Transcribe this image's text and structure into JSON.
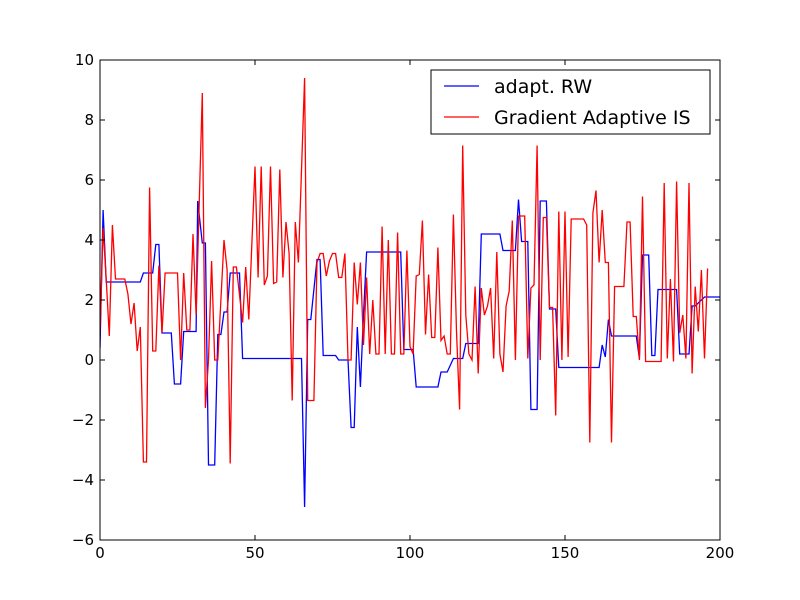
{
  "chart_data": {
    "type": "line",
    "title": "",
    "xlabel": "",
    "ylabel": "",
    "xlim": [
      0,
      200
    ],
    "ylim": [
      -6,
      10
    ],
    "xticks": [
      0,
      50,
      100,
      150,
      200
    ],
    "yticks": [
      -6,
      -4,
      -2,
      0,
      2,
      4,
      6,
      8,
      10
    ],
    "grid": false,
    "legend_position": "top-right",
    "series": [
      {
        "name": "adapt. RW",
        "color": "#0000ff",
        "points": [
          [
            0,
            0.4
          ],
          [
            1,
            5.0
          ],
          [
            2,
            2.6
          ],
          [
            3,
            2.6
          ],
          [
            13,
            2.6
          ],
          [
            14,
            2.9
          ],
          [
            17,
            2.9
          ],
          [
            18,
            3.85
          ],
          [
            19,
            3.85
          ],
          [
            20,
            0.9
          ],
          [
            23,
            0.9
          ],
          [
            24,
            -0.8
          ],
          [
            26,
            -0.8
          ],
          [
            27,
            0.95
          ],
          [
            31,
            0.95
          ],
          [
            31.5,
            5.3
          ],
          [
            33,
            3.9
          ],
          [
            34,
            3.9
          ],
          [
            35,
            -3.5
          ],
          [
            37,
            -3.5
          ],
          [
            38,
            0.85
          ],
          [
            39,
            0.85
          ],
          [
            40,
            1.6
          ],
          [
            41,
            1.6
          ],
          [
            42,
            2.9
          ],
          [
            45,
            2.9
          ],
          [
            46,
            0.05
          ],
          [
            65,
            0.05
          ],
          [
            66,
            -4.9
          ],
          [
            67,
            1.35
          ],
          [
            68,
            1.35
          ],
          [
            70,
            3.35
          ],
          [
            71,
            3.35
          ],
          [
            72,
            0.15
          ],
          [
            76,
            0.15
          ],
          [
            77,
            0.0
          ],
          [
            80,
            0.0
          ],
          [
            81,
            -2.25
          ],
          [
            82,
            -2.25
          ],
          [
            83,
            1.1
          ],
          [
            84,
            -0.9
          ],
          [
            85,
            1.5
          ],
          [
            86,
            3.6
          ],
          [
            97,
            3.6
          ],
          [
            98,
            0.35
          ],
          [
            101,
            0.35
          ],
          [
            102,
            -0.9
          ],
          [
            109,
            -0.9
          ],
          [
            110,
            -0.4
          ],
          [
            112,
            -0.4
          ],
          [
            114,
            0.05
          ],
          [
            117,
            0.05
          ],
          [
            118,
            0.55
          ],
          [
            122,
            0.55
          ],
          [
            123,
            4.2
          ],
          [
            129,
            4.2
          ],
          [
            130,
            3.65
          ],
          [
            134,
            3.65
          ],
          [
            135,
            5.35
          ],
          [
            136,
            3.95
          ],
          [
            138,
            3.95
          ],
          [
            139,
            -1.65
          ],
          [
            141,
            -1.65
          ],
          [
            142,
            5.3
          ],
          [
            144,
            5.3
          ],
          [
            145,
            1.7
          ],
          [
            147,
            1.7
          ],
          [
            148,
            -0.25
          ],
          [
            161,
            -0.25
          ],
          [
            162,
            0.5
          ],
          [
            163,
            0.1
          ],
          [
            164,
            1.35
          ],
          [
            165,
            0.8
          ],
          [
            173,
            0.8
          ],
          [
            174,
            0.05
          ],
          [
            175,
            3.5
          ],
          [
            177,
            3.5
          ],
          [
            178,
            0.15
          ],
          [
            179,
            0.15
          ],
          [
            180,
            2.35
          ],
          [
            186,
            2.35
          ],
          [
            187,
            0.2
          ],
          [
            190,
            0.2
          ],
          [
            191,
            1.8
          ],
          [
            192,
            1.8
          ],
          [
            195,
            2.1
          ],
          [
            200,
            2.1
          ]
        ]
      },
      {
        "name": "Gradient Adaptive IS",
        "color": "#ff0000",
        "points": [
          [
            0,
            0.9
          ],
          [
            1,
            4.4
          ],
          [
            2,
            2.7
          ],
          [
            3,
            0.8
          ],
          [
            4,
            4.5
          ],
          [
            5,
            2.7
          ],
          [
            8,
            2.7
          ],
          [
            9,
            2.2
          ],
          [
            10,
            1.2
          ],
          [
            11,
            1.9
          ],
          [
            12,
            0.3
          ],
          [
            13,
            1.1
          ],
          [
            14,
            -3.4
          ],
          [
            15,
            -3.4
          ],
          [
            16,
            5.75
          ],
          [
            17,
            0.3
          ],
          [
            18,
            0.3
          ],
          [
            19,
            3.15
          ],
          [
            20,
            0.9
          ],
          [
            21,
            2.9
          ],
          [
            25,
            2.9
          ],
          [
            26,
            0.0
          ],
          [
            27,
            2.9
          ],
          [
            28,
            1.0
          ],
          [
            29,
            1.0
          ],
          [
            30,
            4.2
          ],
          [
            31,
            1.5
          ],
          [
            33,
            8.9
          ],
          [
            34,
            -1.6
          ],
          [
            35,
            0.0
          ],
          [
            36,
            3.3
          ],
          [
            37,
            0.0
          ],
          [
            38,
            0.0
          ],
          [
            40,
            4.0
          ],
          [
            41,
            3.0
          ],
          [
            42,
            -3.45
          ],
          [
            43,
            3.1
          ],
          [
            44,
            3.1
          ],
          [
            46,
            1.25
          ],
          [
            47,
            3.1
          ],
          [
            48,
            1.35
          ],
          [
            50,
            6.45
          ],
          [
            51,
            2.75
          ],
          [
            52,
            6.45
          ],
          [
            53,
            2.5
          ],
          [
            54,
            2.8
          ],
          [
            55,
            6.45
          ],
          [
            56,
            2.55
          ],
          [
            57,
            2.6
          ],
          [
            58,
            6.35
          ],
          [
            59,
            2.75
          ],
          [
            60,
            4.6
          ],
          [
            61,
            3.55
          ],
          [
            62,
            -1.35
          ],
          [
            63,
            4.6
          ],
          [
            64,
            3.25
          ],
          [
            66,
            9.4
          ],
          [
            67,
            -1.35
          ],
          [
            69,
            -1.35
          ],
          [
            70,
            3.25
          ],
          [
            71,
            3.55
          ],
          [
            72,
            3.55
          ],
          [
            73,
            2.8
          ],
          [
            74,
            3.3
          ],
          [
            75,
            3.55
          ],
          [
            76,
            3.55
          ],
          [
            77,
            2.75
          ],
          [
            78,
            2.75
          ],
          [
            79,
            3.55
          ],
          [
            80,
            0.0
          ],
          [
            81,
            0.0
          ],
          [
            82,
            3.25
          ],
          [
            83,
            1.85
          ],
          [
            84,
            3.25
          ],
          [
            85,
            0.5
          ],
          [
            86,
            2.75
          ],
          [
            87,
            0.2
          ],
          [
            88,
            2.0
          ],
          [
            89,
            0.2
          ],
          [
            90,
            0.2
          ],
          [
            91,
            4.45
          ],
          [
            92,
            0.2
          ],
          [
            93,
            4.0
          ],
          [
            94,
            0.2
          ],
          [
            95,
            0.2
          ],
          [
            96,
            4.25
          ],
          [
            97,
            0.2
          ],
          [
            98,
            0.2
          ],
          [
            99,
            3.65
          ],
          [
            100,
            0.45
          ],
          [
            101,
            0.2
          ],
          [
            102,
            2.8
          ],
          [
            103,
            2.85
          ],
          [
            104,
            4.65
          ],
          [
            105,
            0.85
          ],
          [
            106,
            2.85
          ],
          [
            107,
            0.75
          ],
          [
            108,
            0.75
          ],
          [
            109,
            3.75
          ],
          [
            110,
            0.65
          ],
          [
            111,
            0.8
          ],
          [
            112,
            0.2
          ],
          [
            113,
            0.2
          ],
          [
            114,
            4.85
          ],
          [
            115,
            0.95
          ],
          [
            116,
            -1.65
          ],
          [
            117,
            7.15
          ],
          [
            118,
            1.5
          ],
          [
            119,
            0.2
          ],
          [
            120,
            0.0
          ],
          [
            121,
            2.45
          ],
          [
            122,
            -0.45
          ],
          [
            123,
            2.4
          ],
          [
            124,
            1.5
          ],
          [
            125,
            1.8
          ],
          [
            126,
            2.4
          ],
          [
            127,
            0.05
          ],
          [
            128,
            3.6
          ],
          [
            129,
            0.2
          ],
          [
            130,
            -0.4
          ],
          [
            131,
            1.8
          ],
          [
            132,
            2.3
          ],
          [
            133,
            4.65
          ],
          [
            134,
            0.0
          ],
          [
            135,
            4.8
          ],
          [
            137,
            4.8
          ],
          [
            138,
            0.05
          ],
          [
            139,
            2.4
          ],
          [
            140,
            2.5
          ],
          [
            141,
            7.15
          ],
          [
            142,
            0.0
          ],
          [
            143,
            4.75
          ],
          [
            144,
            4.75
          ],
          [
            145,
            1.75
          ],
          [
            146,
            1.75
          ],
          [
            147,
            -1.85
          ],
          [
            148,
            4.95
          ],
          [
            149,
            0.0
          ],
          [
            150,
            4.95
          ],
          [
            151,
            0.1
          ],
          [
            152,
            4.7
          ],
          [
            156,
            4.7
          ],
          [
            157,
            4.5
          ],
          [
            158,
            -2.75
          ],
          [
            159,
            4.9
          ],
          [
            160,
            5.65
          ],
          [
            161,
            3.25
          ],
          [
            162,
            5.0
          ],
          [
            163,
            3.25
          ],
          [
            164,
            3.25
          ],
          [
            165,
            -2.75
          ],
          [
            166,
            2.45
          ],
          [
            169,
            2.45
          ],
          [
            170,
            4.6
          ],
          [
            171,
            4.6
          ],
          [
            172,
            1.45
          ],
          [
            173,
            1.45
          ],
          [
            174,
            0.0
          ],
          [
            175,
            5.45
          ],
          [
            176,
            -0.05
          ],
          [
            181,
            -0.05
          ],
          [
            182,
            5.9
          ],
          [
            183,
            0.05
          ],
          [
            184,
            2.7
          ],
          [
            185,
            -0.05
          ],
          [
            186,
            5.95
          ],
          [
            187,
            0.9
          ],
          [
            188,
            1.5
          ],
          [
            189,
            0.05
          ],
          [
            190,
            5.9
          ],
          [
            191,
            -0.45
          ],
          [
            192,
            2.45
          ],
          [
            193,
            0.95
          ],
          [
            194,
            3.0
          ],
          [
            195,
            0.05
          ],
          [
            196,
            3.05
          ]
        ]
      }
    ]
  }
}
